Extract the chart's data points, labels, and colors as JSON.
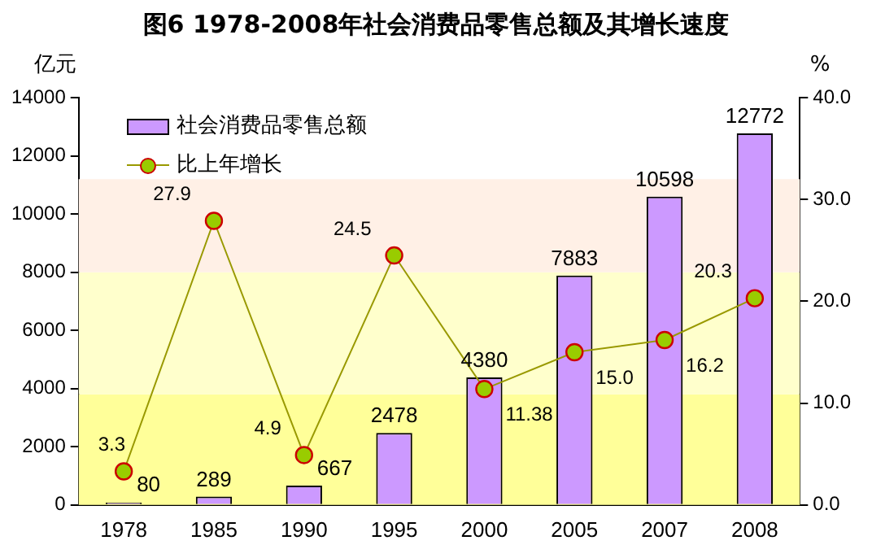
{
  "chart_data": {
    "type": "bar",
    "title": "图6  1978-2008年社会消费品零售总额及其增长速度",
    "ylabel": "亿元",
    "y2label": "%",
    "categories": [
      "1978",
      "1985",
      "1990",
      "1995",
      "2000",
      "2005",
      "2007",
      "2008"
    ],
    "series": [
      {
        "name": "社会消费品零售总额",
        "color": "#cc99ff",
        "values": [
          80,
          289,
          667,
          2478,
          4380,
          7883,
          10598,
          12772
        ],
        "value_labels": [
          "80",
          "289",
          "667",
          "2478",
          "4380",
          "7883",
          "10598",
          "12772"
        ]
      },
      {
        "name": "比上年增长",
        "type": "line",
        "axis": "y2",
        "color": "#99cc00",
        "values": [
          3.3,
          27.9,
          4.9,
          24.5,
          11.38,
          15.0,
          16.2,
          20.3
        ],
        "value_labels": [
          "3.3",
          "27.9",
          "4.9",
          "24.5",
          "11.38",
          "15.0",
          "16.2",
          "20.3"
        ]
      }
    ],
    "ylim": [
      0,
      14000
    ],
    "yticks": [
      0,
      2000,
      4000,
      6000,
      8000,
      10000,
      12000,
      14000
    ],
    "y2lim": [
      0,
      40
    ],
    "y2ticks": [
      {
        "value": 0,
        "label": "0.0"
      },
      {
        "value": 10,
        "label": "10.0"
      },
      {
        "value": 20,
        "label": "20.0"
      },
      {
        "value": 30,
        "label": "30.0"
      },
      {
        "value": 40,
        "label": "40.0"
      }
    ],
    "bands": [
      {
        "axis": "y",
        "from": 0,
        "to": 3800,
        "color": "#ffff99"
      },
      {
        "axis": "y",
        "from": 3800,
        "to": 8000,
        "color": "#ffffcc"
      },
      {
        "axis": "y",
        "from": 8000,
        "to": 11200,
        "color": "#fff0e6"
      }
    ],
    "legend": "top left",
    "marker": "circle",
    "grid": false
  }
}
